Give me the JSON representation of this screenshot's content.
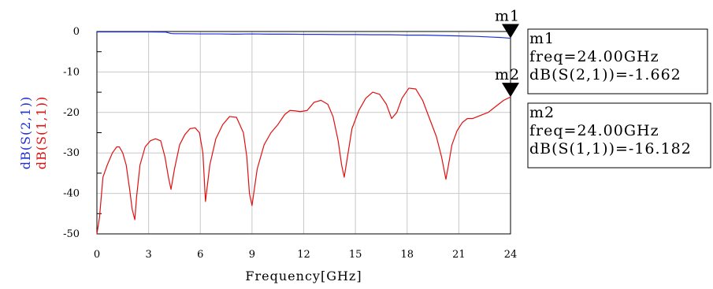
{
  "chart_data": {
    "type": "line",
    "xlabel": "Frequency[GHz]",
    "ylabel_parts": [
      {
        "text": "dB(S(2,1))",
        "color": "#1f2fd6"
      },
      {
        "text": "dB(S(1,1))",
        "color": "#e01010"
      }
    ],
    "xlim": [
      0,
      24
    ],
    "ylim": [
      -50,
      0
    ],
    "xticks": [
      0,
      3,
      6,
      9,
      12,
      15,
      18,
      21,
      24
    ],
    "yticks": [
      0,
      -10,
      -20,
      -30,
      -40,
      -50
    ],
    "grid": true,
    "series": [
      {
        "name": "dB(S(2,1))",
        "color": "#1f2fd6",
        "x": [
          0,
          0.5,
          1,
          2,
          3,
          4,
          4.3,
          4.5,
          5,
          6,
          7,
          8,
          9,
          10,
          11,
          12,
          13,
          14,
          15,
          16,
          17,
          18,
          19,
          20,
          21,
          22,
          22.5,
          23,
          23.5,
          24
        ],
        "y": [
          -0.1,
          -0.1,
          -0.1,
          -0.1,
          -0.1,
          -0.15,
          -0.5,
          -0.55,
          -0.55,
          -0.6,
          -0.6,
          -0.65,
          -0.6,
          -0.65,
          -0.65,
          -0.7,
          -0.7,
          -0.75,
          -0.75,
          -0.8,
          -0.8,
          -0.9,
          -0.9,
          -1.0,
          -1.1,
          -1.2,
          -1.3,
          -1.4,
          -1.5,
          -1.662
        ]
      },
      {
        "name": "dB(S(1,1))",
        "color": "#e01010",
        "x": [
          0,
          0.15,
          0.35,
          0.6,
          0.9,
          1.15,
          1.3,
          1.5,
          1.7,
          1.9,
          2.05,
          2.2,
          2.3,
          2.5,
          2.8,
          3.1,
          3.4,
          3.7,
          3.95,
          4.15,
          4.3,
          4.5,
          4.8,
          5.1,
          5.4,
          5.7,
          5.95,
          6.15,
          6.3,
          6.55,
          6.9,
          7.3,
          7.7,
          8.1,
          8.5,
          8.7,
          8.85,
          9.0,
          9.3,
          9.7,
          10.1,
          10.5,
          10.9,
          11.2,
          11.5,
          11.8,
          12.2,
          12.6,
          13.0,
          13.4,
          13.7,
          14.0,
          14.2,
          14.35,
          14.5,
          14.8,
          15.2,
          15.6,
          16.0,
          16.4,
          16.8,
          17.1,
          17.4,
          17.7,
          18.1,
          18.5,
          18.9,
          19.3,
          19.7,
          20.0,
          20.25,
          20.4,
          20.6,
          20.9,
          21.2,
          21.5,
          21.8,
          22.1,
          22.4,
          22.7,
          23.0,
          23.3,
          23.6,
          24.0
        ],
        "y": [
          -50,
          -46,
          -36,
          -33,
          -30,
          -28.5,
          -28.5,
          -30,
          -33,
          -39,
          -44,
          -46.5,
          -41,
          -33,
          -28.5,
          -27,
          -26.5,
          -27,
          -31,
          -36,
          -39,
          -34,
          -28,
          -25.5,
          -24,
          -23.8,
          -25,
          -30,
          -42,
          -33,
          -26.5,
          -23,
          -21,
          -21.2,
          -25,
          -31,
          -40,
          -43,
          -34,
          -28,
          -25,
          -23,
          -20.5,
          -19.5,
          -19.6,
          -19.8,
          -19.5,
          -17.5,
          -17,
          -18,
          -21,
          -27,
          -33,
          -36,
          -32,
          -24,
          -19.5,
          -16.5,
          -15,
          -15.5,
          -18,
          -21.5,
          -20,
          -16.5,
          -14,
          -14.2,
          -17,
          -21.5,
          -26,
          -31,
          -36.5,
          -33,
          -28,
          -24.5,
          -22.5,
          -21.5,
          -21.5,
          -21,
          -20.5,
          -20,
          -19,
          -18,
          -17,
          -16.182
        ]
      }
    ],
    "markers": [
      {
        "name": "m1",
        "x": 24.0,
        "y": -1.662,
        "series": "dB(S(2,1))",
        "lines": [
          "m1",
          "freq=24.00GHz",
          "dB(S(2,1))=-1.662"
        ]
      },
      {
        "name": "m2",
        "x": 24.0,
        "y": -16.182,
        "series": "dB(S(1,1))",
        "lines": [
          "m2",
          "freq=24.00GHz",
          "dB(S(1,1))=-16.182"
        ]
      }
    ]
  }
}
